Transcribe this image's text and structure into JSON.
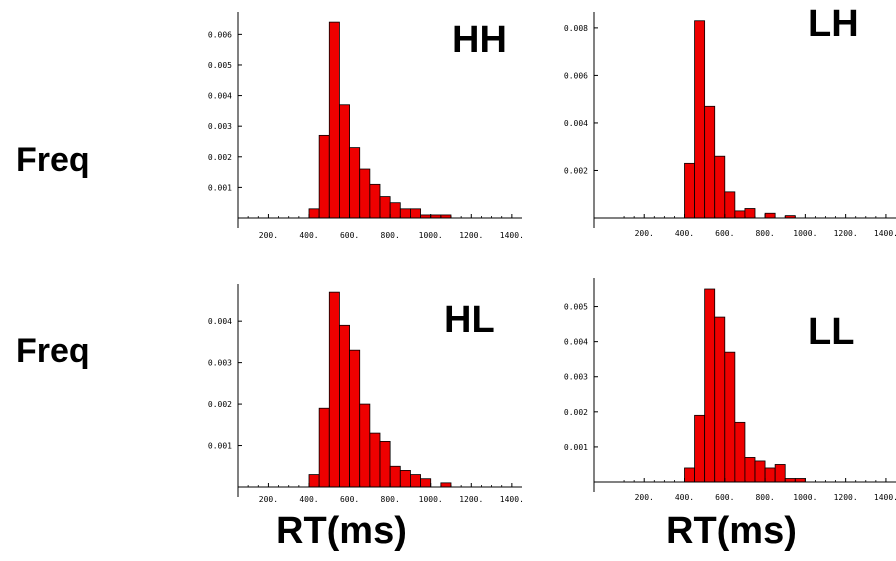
{
  "y_axis_labels": [
    "Freq",
    "Freq"
  ],
  "x_axis_labels": [
    "RT(ms)",
    "RT(ms)"
  ],
  "colors": {
    "bar_fill": "#ee0000",
    "bar_stroke": "#000000",
    "axis": "#000000"
  },
  "chart_data": [
    {
      "type": "bar",
      "title": "HH",
      "xlim": [
        50,
        1450
      ],
      "ylim": [
        0,
        0.0066
      ],
      "x_ticks": [
        200,
        400,
        600,
        800,
        1000,
        1200,
        1400
      ],
      "x_tick_labels": [
        "200.",
        "400.",
        "600.",
        "800.",
        "1000.",
        "1200.",
        "1400."
      ],
      "y_ticks": [
        0.001,
        0.002,
        0.003,
        0.004,
        0.005,
        0.006
      ],
      "y_tick_labels": [
        "0.001",
        "0.002",
        "0.003",
        "0.004",
        "0.005",
        "0.006"
      ],
      "bin_start": 400,
      "bin_width": 50,
      "values": [
        0.0003,
        0.0027,
        0.0064,
        0.0037,
        0.0023,
        0.0016,
        0.0011,
        0.0007,
        0.0005,
        0.0003,
        0.0003,
        0.0001,
        0.0001,
        0.0001
      ]
    },
    {
      "type": "bar",
      "title": "LH",
      "xlim": [
        50,
        1450
      ],
      "ylim": [
        0,
        0.0085
      ],
      "x_ticks": [
        200,
        400,
        600,
        800,
        1000,
        1200,
        1400
      ],
      "x_tick_labels": [
        "200.",
        "400.",
        "600.",
        "800.",
        "1000.",
        "1200.",
        "1400."
      ],
      "y_ticks": [
        0.002,
        0.004,
        0.006,
        0.008
      ],
      "y_tick_labels": [
        "0.002",
        "0.004",
        "0.006",
        "0.008"
      ],
      "bin_start": 400,
      "bin_width": 50,
      "values": [
        0.0023,
        0.0083,
        0.0047,
        0.0026,
        0.0011,
        0.0003,
        0.0004,
        0.0,
        0.0002,
        0.0,
        0.0001
      ]
    },
    {
      "type": "bar",
      "title": "HL",
      "xlim": [
        50,
        1450
      ],
      "ylim": [
        0,
        0.0048
      ],
      "x_ticks": [
        200,
        400,
        600,
        800,
        1000,
        1200,
        1400
      ],
      "x_tick_labels": [
        "200.",
        "400.",
        "600.",
        "800.",
        "1000.",
        "1200.",
        "1400."
      ],
      "y_ticks": [
        0.001,
        0.002,
        0.003,
        0.004
      ],
      "y_tick_labels": [
        "0.001",
        "0.002",
        "0.003",
        "0.004"
      ],
      "bin_start": 400,
      "bin_width": 50,
      "values": [
        0.0003,
        0.0019,
        0.0047,
        0.0039,
        0.0033,
        0.002,
        0.0013,
        0.0011,
        0.0005,
        0.0004,
        0.0003,
        0.0002,
        0.0,
        0.0001
      ]
    },
    {
      "type": "bar",
      "title": "LL",
      "xlim": [
        50,
        1450
      ],
      "ylim": [
        0,
        0.0057
      ],
      "x_ticks": [
        200,
        400,
        600,
        800,
        1000,
        1200,
        1400
      ],
      "x_tick_labels": [
        "200.",
        "400.",
        "600.",
        "800.",
        "1000.",
        "1200.",
        "1400."
      ],
      "y_ticks": [
        0.001,
        0.002,
        0.003,
        0.004,
        0.005
      ],
      "y_tick_labels": [
        "0.001",
        "0.002",
        "0.003",
        "0.004",
        "0.005"
      ],
      "bin_start": 400,
      "bin_width": 50,
      "values": [
        0.0004,
        0.0019,
        0.0055,
        0.0047,
        0.0037,
        0.0017,
        0.0007,
        0.0006,
        0.0004,
        0.0005,
        0.0001,
        0.0001
      ]
    }
  ]
}
